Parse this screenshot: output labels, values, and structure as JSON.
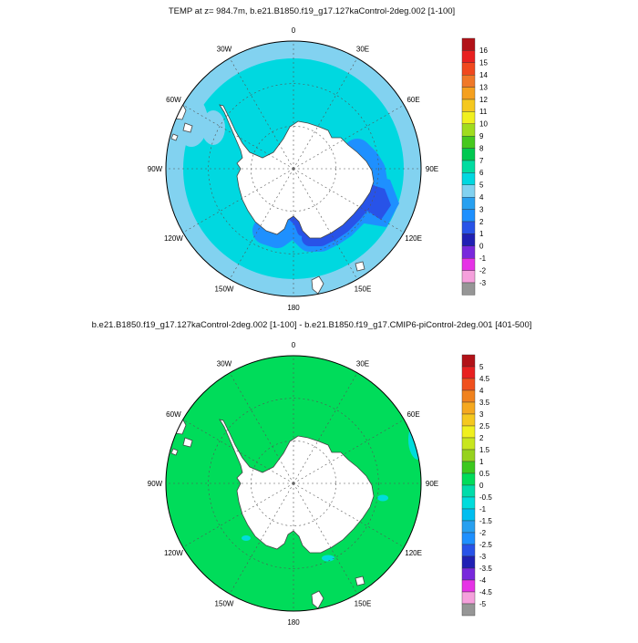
{
  "figure": {
    "lon_labels": [
      "0",
      "30E",
      "60E",
      "90E",
      "120E",
      "150E",
      "180",
      "150W",
      "120W",
      "90W",
      "60W",
      "30W"
    ],
    "top": {
      "title": "TEMP at z= 984.7m, b.e21.B1850.f19_g17.127kaControl-2deg.002 [1-100]",
      "colorbar": {
        "labels": [
          "16",
          "15",
          "14",
          "13",
          "12",
          "11",
          "10",
          "9",
          "8",
          "7",
          "6",
          "5",
          "4",
          "3",
          "2",
          "1",
          "0",
          "-1",
          "-2",
          "-3"
        ],
        "colors": [
          "#B21218",
          "#E82020",
          "#F0481E",
          "#F07828",
          "#F5A01E",
          "#F5C81E",
          "#F0F01E",
          "#A0DC1E",
          "#46C81E",
          "#00C850",
          "#00DCA0",
          "#00D8E0",
          "#82D2F0",
          "#28A0F0",
          "#1E90FF",
          "#2853E8",
          "#2020B4",
          "#7828DC",
          "#E632E6",
          "#F5A0DC",
          "#969696"
        ]
      }
    },
    "bottom": {
      "title": "b.e21.B1850.f19_g17.127kaControl-2deg.002 [1-100] - b.e21.B1850.f19_g17.CMIP6-piControl-2deg.001 [401-500]",
      "colorbar": {
        "labels": [
          "5",
          "4.5",
          "4",
          "3.5",
          "3",
          "2.5",
          "2",
          "1.5",
          "1",
          "0.5",
          "0",
          "-0.5",
          "-1",
          "-1.5",
          "-2",
          "-2.5",
          "-3",
          "-3.5",
          "-4",
          "-4.5",
          "-5"
        ],
        "colors": [
          "#B21218",
          "#E82020",
          "#F0501E",
          "#F0821E",
          "#F5A81E",
          "#F5C81E",
          "#F0F01E",
          "#C8E61E",
          "#96D21E",
          "#3CC81E",
          "#00DC5A",
          "#00DCAA",
          "#00DCDC",
          "#00BEF0",
          "#28A0F0",
          "#1E90FF",
          "#2853E8",
          "#2020B4",
          "#7828DC",
          "#E632E6",
          "#F5A0DC",
          "#969696"
        ]
      }
    }
  },
  "chart_data": [
    {
      "type": "heatmap",
      "variant": "filled-contour-south-polar-map",
      "title": "TEMP at z= 984.7m, b.e21.B1850.f19_g17.127kaControl-2deg.002 [1-100]",
      "projection": "south polar stereographic, Antarctica centered",
      "longitude_ticks": [
        "0",
        "30E",
        "60E",
        "90E",
        "120E",
        "150E",
        "180",
        "150W",
        "120W",
        "90W",
        "60W",
        "30W"
      ],
      "contour_levels": [
        -3,
        -2,
        -1,
        0,
        1,
        2,
        3,
        4,
        5,
        6,
        7,
        8,
        9,
        10,
        11,
        12,
        13,
        14,
        15,
        16
      ],
      "colorbar_range": [
        -3,
        16
      ],
      "legend_position": "right",
      "grid": "dashed lat/lon graticule every 30 degrees longitude",
      "features": {
        "land": "Antarctica, tip of South America, New Zealand/Tasmania masked white",
        "open_ocean_value_band": "5-6 (vivid cyan) over most of Southern Ocean",
        "outer_edge_value_band": "4-5 (pale blue) annulus near map boundary",
        "coastal_band_value": "2-3 (medium blue) along East Antarctic coast",
        "inner_coastal_band_value": "1-2 (dark blue), strongest 90E-180 and in Ross Sea"
      }
    },
    {
      "type": "heatmap",
      "variant": "filled-contour-south-polar-map",
      "title": "b.e21.B1850.f19_g17.127kaControl-2deg.002 [1-100] - b.e21.B1850.f19_g17.CMIP6-piControl-2deg.001 [401-500]",
      "projection": "south polar stereographic, Antarctica centered",
      "longitude_ticks": [
        "0",
        "30E",
        "60E",
        "90E",
        "120E",
        "150E",
        "180",
        "150W",
        "120W",
        "90W",
        "60W",
        "30W"
      ],
      "contour_levels": [
        -5,
        -4.5,
        -4,
        -3.5,
        -3,
        -2.5,
        -2,
        -1.5,
        -1,
        -0.5,
        0,
        0.5,
        1,
        1.5,
        2,
        2.5,
        3,
        3.5,
        4,
        4.5,
        5
      ],
      "colorbar_range": [
        -5,
        5
      ],
      "legend_position": "right",
      "grid": "dashed lat/lon graticule every 30 degrees longitude",
      "features": {
        "land": "Antarctica and small islands masked white",
        "dominant_value_band": "0 to 0.5 (green) over nearly the entire ocean",
        "minor_patches": "-1 to -0.5 (cyan) small specks near the coast and map edge"
      }
    }
  ]
}
